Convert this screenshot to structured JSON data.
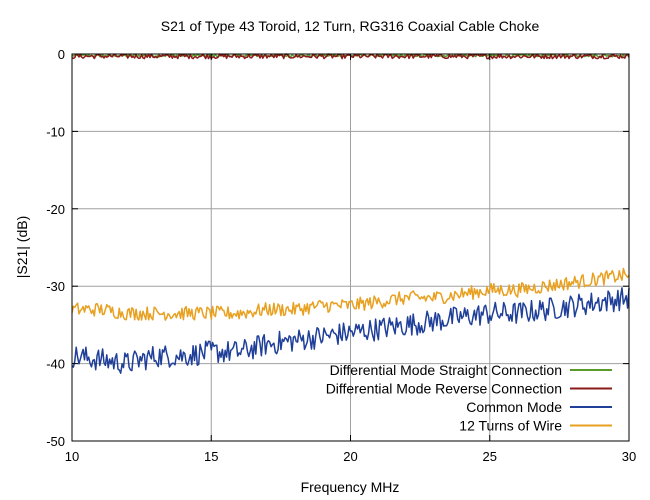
{
  "chart_data": {
    "type": "line",
    "title": "S21 of Type 43 Toroid, 12 Turn, RG316 Coaxial Cable Choke",
    "xlabel": "Frequency MHz",
    "ylabel": "|S21| (dB)",
    "xlim": [
      10,
      30
    ],
    "ylim": [
      -50,
      0
    ],
    "xticks": [
      10,
      15,
      20,
      25,
      30
    ],
    "yticks": [
      0,
      -10,
      -20,
      -30,
      -40,
      -50
    ],
    "grid": true,
    "legend_position": "bottom-right",
    "series": [
      {
        "name": "Differential Mode Straight Connection",
        "color": "#5a9a2a",
        "noise": 0.15,
        "x": [
          10,
          30
        ],
        "y": [
          -0.2,
          -0.2
        ]
      },
      {
        "name": "Differential Mode Reverse Connection",
        "color": "#8b1a1a",
        "noise": 0.3,
        "x": [
          10,
          30
        ],
        "y": [
          -0.3,
          -0.3
        ]
      },
      {
        "name": "Common Mode",
        "color": "#1f3f99",
        "noise": 1.5,
        "x": [
          10,
          11,
          12,
          13,
          14,
          15,
          16,
          17,
          18,
          19,
          20,
          21,
          22,
          23,
          24,
          25,
          26,
          27,
          28,
          29,
          30
        ],
        "y": [
          -39,
          -39.5,
          -40,
          -39,
          -39,
          -38.5,
          -38.5,
          -37.5,
          -37,
          -36.5,
          -36,
          -35.5,
          -35,
          -34.5,
          -34,
          -33.5,
          -33.5,
          -33,
          -32.5,
          -32,
          -31.5
        ]
      },
      {
        "name": "12 Turns of Wire",
        "color": "#e8a020",
        "noise": 0.9,
        "x": [
          10,
          11,
          12,
          13,
          14,
          15,
          16,
          17,
          18,
          19,
          20,
          21,
          22,
          23,
          24,
          25,
          26,
          27,
          28,
          29,
          30
        ],
        "y": [
          -33,
          -33,
          -33.5,
          -33.5,
          -33.5,
          -33.5,
          -33.5,
          -33,
          -33,
          -32.5,
          -32.5,
          -32,
          -31.5,
          -31.5,
          -31,
          -30.5,
          -30.5,
          -30,
          -29.5,
          -29,
          -28.5
        ]
      }
    ]
  }
}
